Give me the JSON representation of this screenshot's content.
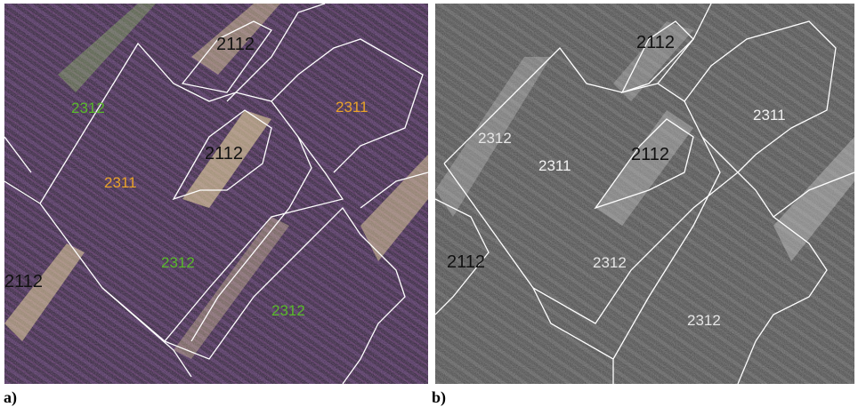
{
  "panels": [
    {
      "id": "a",
      "label": "a)",
      "imagery": "color SAR composite",
      "colors": {
        "background": "#2e2138",
        "stripe": "#5a3a6e",
        "bright": "#e8d6a0",
        "boundary": "#ffffff"
      },
      "field_labels": [
        {
          "text": "2112",
          "color": "#111111"
        },
        {
          "text": "2312",
          "color": "#58b92a"
        },
        {
          "text": "2311",
          "color": "#e8a22a"
        },
        {
          "text": "2112",
          "color": "#111111"
        },
        {
          "text": "2311",
          "color": "#e8a22a"
        },
        {
          "text": "2112",
          "color": "#111111"
        },
        {
          "text": "2312",
          "color": "#58b92a"
        },
        {
          "text": "2312",
          "color": "#58b92a"
        }
      ]
    },
    {
      "id": "b",
      "label": "b)",
      "imagery": "grayscale SAR image",
      "colors": {
        "background": "#4a4a4a",
        "stripe": "#6a6a6a",
        "bright": "#c8c8c8",
        "boundary": "#ffffff"
      },
      "field_labels": [
        {
          "text": "2112",
          "color": "#111111"
        },
        {
          "text": "2312",
          "color": "#e6e6e6"
        },
        {
          "text": "2311",
          "color": "#f2f2f2"
        },
        {
          "text": "2112",
          "color": "#111111"
        },
        {
          "text": "2311",
          "color": "#f2f2f2"
        },
        {
          "text": "2112",
          "color": "#111111"
        },
        {
          "text": "2312",
          "color": "#e6e6e6"
        },
        {
          "text": "2312",
          "color": "#e6e6e6"
        }
      ]
    }
  ]
}
